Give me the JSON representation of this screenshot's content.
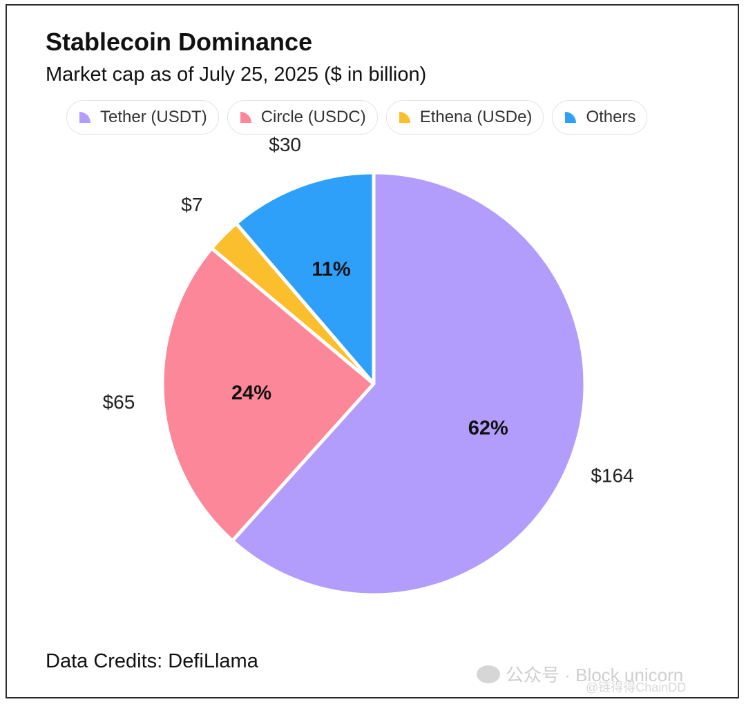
{
  "title": "Stablecoin Dominance",
  "subtitle": "Market cap as of July 25, 2025 ($ in billion)",
  "credits": "Data Credits: DefiLlama",
  "watermark": {
    "main": "公众号 · Block unicorn",
    "sub": "@链得得ChainDD"
  },
  "chart_data": {
    "type": "pie",
    "title": "Stablecoin Dominance",
    "subtitle": "Market cap as of July 25, 2025 ($ in billion)",
    "legend_position": "top",
    "slices": [
      {
        "name": "Tether (USDT)",
        "value": 164,
        "value_label": "$164",
        "percent_label": "62%",
        "color": "#b39dfc"
      },
      {
        "name": "Circle (USDC)",
        "value": 65,
        "value_label": "$65",
        "percent_label": "24%",
        "color": "#fb8799"
      },
      {
        "name": "Ethena (USDe)",
        "value": 7,
        "value_label": "$7",
        "percent_label": "",
        "color": "#fbbf2e"
      },
      {
        "name": "Others",
        "value": 30,
        "value_label": "$30",
        "percent_label": "11%",
        "color": "#2ea0f9"
      }
    ]
  }
}
